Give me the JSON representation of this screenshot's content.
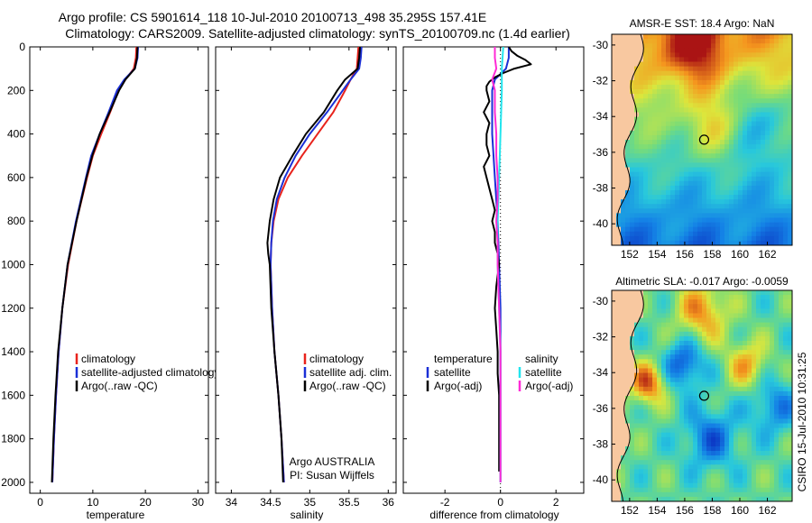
{
  "title": {
    "line1": "Argo profile: CS 5901614_118 10-Jul-2010 20100713_498 35.295S 157.41E",
    "line2": "Climatology: CARS2009. Satellite-adjusted climatology: synTS_20100709.nc (1.4d earlier)"
  },
  "colors": {
    "climatology": "#e8231c",
    "satellite": "#1a2fd6",
    "argo": "#000000",
    "sat_diff_salinity": "#22e5ee",
    "argo_diff_salinity": "#ff2bd6",
    "land": "#f8c8a0"
  },
  "chart_data": [
    {
      "type": "line",
      "name": "temperature-profile",
      "xlabel": "temperature",
      "ylabel": "",
      "xlim": [
        -2,
        32
      ],
      "ylim": [
        2050,
        0
      ],
      "xticks": [
        "0",
        "10",
        "20",
        "30"
      ],
      "yticks": [
        "0",
        "200",
        "400",
        "600",
        "800",
        "1000",
        "1200",
        "1400",
        "1600",
        "1800",
        "2000"
      ],
      "legend": [
        "climatology",
        "satellite-adjusted climatology",
        "Argo(..raw -QC)"
      ],
      "series": [
        {
          "name": "climatology",
          "depth": [
            0,
            50,
            100,
            150,
            200,
            300,
            400,
            500,
            600,
            800,
            1000,
            1200,
            1400,
            1600,
            1800,
            2000
          ],
          "values": [
            18.3,
            18.2,
            17.8,
            16.2,
            14.9,
            13.3,
            11.6,
            10.0,
            8.9,
            6.9,
            5.3,
            4.2,
            3.5,
            3.0,
            2.6,
            2.3
          ]
        },
        {
          "name": "satellite-adjusted climatology",
          "depth": [
            0,
            50,
            100,
            150,
            200,
            300,
            400,
            500,
            600,
            800,
            1000,
            1200,
            1400,
            1600,
            1800,
            2000
          ],
          "values": [
            18.6,
            18.5,
            18.0,
            16.0,
            14.6,
            13.0,
            11.3,
            9.7,
            8.7,
            6.8,
            5.2,
            4.2,
            3.5,
            3.0,
            2.6,
            2.3
          ]
        },
        {
          "name": "Argo(..raw -QC)",
          "depth": [
            0,
            50,
            100,
            150,
            200,
            300,
            400,
            500,
            600,
            800,
            1000,
            1200,
            1400,
            1600,
            1800,
            2000
          ],
          "values": [
            18.5,
            18.4,
            18.0,
            16.2,
            15.0,
            13.2,
            11.3,
            9.9,
            8.8,
            6.9,
            5.2,
            4.2,
            3.4,
            2.9,
            2.5,
            2.2
          ]
        }
      ]
    },
    {
      "type": "line",
      "name": "salinity-profile",
      "xlabel": "salinity",
      "xlim": [
        33.8,
        36.1
      ],
      "ylim": [
        2050,
        0
      ],
      "xticks": [
        "34",
        "34.5",
        "35",
        "35.5",
        "36"
      ],
      "legend": [
        "climatology",
        "satellite adj. clim.",
        "Argo(..raw -QC)"
      ],
      "annotation": [
        "Argo AUSTRALIA",
        "PI: Susan Wijffels"
      ],
      "series": [
        {
          "name": "climatology",
          "depth": [
            0,
            50,
            100,
            150,
            200,
            300,
            400,
            500,
            600,
            700,
            800,
            900,
            1000,
            1200,
            1400,
            1600,
            1800,
            2000
          ],
          "values": [
            35.62,
            35.61,
            35.6,
            35.52,
            35.45,
            35.3,
            35.1,
            34.9,
            34.72,
            34.6,
            34.54,
            34.51,
            34.5,
            34.52,
            34.55,
            34.6,
            34.64,
            34.67
          ]
        },
        {
          "name": "satellite adj. clim.",
          "depth": [
            0,
            50,
            100,
            150,
            200,
            300,
            400,
            500,
            600,
            700,
            800,
            900,
            1000,
            1200,
            1400,
            1600,
            1800,
            2000
          ],
          "values": [
            35.66,
            35.65,
            35.63,
            35.52,
            35.42,
            35.22,
            35.0,
            34.82,
            34.68,
            34.58,
            34.53,
            34.51,
            34.5,
            34.52,
            34.55,
            34.6,
            34.64,
            34.67
          ]
        },
        {
          "name": "Argo(..raw -QC)",
          "depth": [
            0,
            50,
            100,
            150,
            200,
            300,
            400,
            500,
            600,
            700,
            800,
            900,
            950,
            1000,
            1200,
            1400,
            1600,
            1800,
            2000
          ],
          "values": [
            35.64,
            35.63,
            35.61,
            35.45,
            35.35,
            35.18,
            34.95,
            34.78,
            34.62,
            34.54,
            34.49,
            34.46,
            34.47,
            34.49,
            34.51,
            34.55,
            34.6,
            34.64,
            34.66
          ]
        }
      ]
    },
    {
      "type": "line",
      "name": "difference-profile",
      "xlabel": "difference from climatology",
      "xlim": [
        -3.5,
        3.0
      ],
      "ylim": [
        2050,
        0
      ],
      "xticks": [
        "-2",
        "0",
        "2"
      ],
      "legend_left_title": "temperature",
      "legend_right_title": "salinity",
      "legend": [
        "satellite",
        "Argo(-adj)",
        "satellite",
        "Argo(-adj)"
      ],
      "series": [
        {
          "name": "temperature satellite",
          "depth": [
            0,
            50,
            100,
            150,
            200,
            400,
            600,
            800,
            1000,
            1200,
            1400,
            1600,
            1800,
            2000
          ],
          "values": [
            0.3,
            0.3,
            0.2,
            -0.2,
            -0.3,
            -0.3,
            -0.2,
            -0.1,
            -0.05,
            0,
            0,
            0,
            0,
            0
          ]
        },
        {
          "name": "temperature Argo(-adj)",
          "depth": [
            0,
            20,
            40,
            60,
            80,
            100,
            120,
            140,
            160,
            180,
            200,
            250,
            300,
            350,
            400,
            450,
            500,
            550,
            600,
            650,
            700,
            750,
            800,
            850,
            900,
            950,
            1000,
            1050,
            1100,
            1200,
            1300,
            1400,
            1500,
            1600,
            1700,
            1800,
            1900,
            1950
          ],
          "values": [
            0.3,
            0.4,
            0.6,
            0.9,
            1.1,
            0.5,
            0.1,
            -0.2,
            -0.4,
            -0.5,
            -0.5,
            -0.4,
            -0.6,
            -0.4,
            -0.5,
            -0.5,
            -0.4,
            -0.6,
            -0.5,
            -0.4,
            -0.3,
            -0.2,
            -0.3,
            -0.2,
            -0.2,
            -0.1,
            -0.05,
            -0.1,
            -0.15,
            -0.2,
            -0.15,
            -0.1,
            -0.1,
            -0.05,
            -0.05,
            -0.05,
            -0.05,
            -0.05
          ]
        },
        {
          "name": "salinity satellite",
          "depth": [
            0,
            100,
            200,
            400,
            600,
            800,
            1000,
            1200,
            1400,
            1600,
            1800,
            2000
          ],
          "values": [
            0.1,
            0.05,
            0.05,
            0.0,
            -0.05,
            -0.1,
            -0.1,
            -0.05,
            0.0,
            0.0,
            0.0,
            0.0
          ]
        },
        {
          "name": "salinity Argo(-adj)",
          "depth": [
            0,
            50,
            100,
            150,
            200,
            300,
            400,
            500,
            600,
            700,
            800,
            900,
            1000,
            1200,
            1400,
            1600,
            1800,
            2000
          ],
          "values": [
            -0.2,
            -0.2,
            -0.15,
            -0.3,
            -0.2,
            -0.2,
            -0.15,
            -0.15,
            -0.1,
            -0.1,
            -0.15,
            -0.1,
            -0.1,
            -0.05,
            0.0,
            0.0,
            0.0,
            0.0
          ]
        }
      ]
    },
    {
      "type": "heatmap",
      "name": "sst-map",
      "title": "AMSR-E SST: 18.4 Argo: NaN",
      "xlim": [
        150.7,
        163.8
      ],
      "ylim": [
        -41.2,
        -29.4
      ],
      "xticks": [
        "152",
        "154",
        "156",
        "158",
        "160",
        "162"
      ],
      "yticks": [
        "-30",
        "-32",
        "-34",
        "-36",
        "-38",
        "-40"
      ],
      "marker": {
        "lon": 157.41,
        "lat": -35.295
      }
    },
    {
      "type": "heatmap",
      "name": "sla-map",
      "title": "Altimetric SLA: -0.017 Argo: -0.0059",
      "xlim": [
        150.7,
        163.8
      ],
      "ylim": [
        -41.2,
        -29.4
      ],
      "xticks": [
        "152",
        "154",
        "156",
        "158",
        "160",
        "162"
      ],
      "yticks": [
        "-30",
        "-32",
        "-34",
        "-36",
        "-38",
        "-40"
      ],
      "marker": {
        "lon": 157.41,
        "lat": -35.295
      }
    }
  ],
  "side_note": "CSIRO 15-Jul-2010 10:31:25"
}
